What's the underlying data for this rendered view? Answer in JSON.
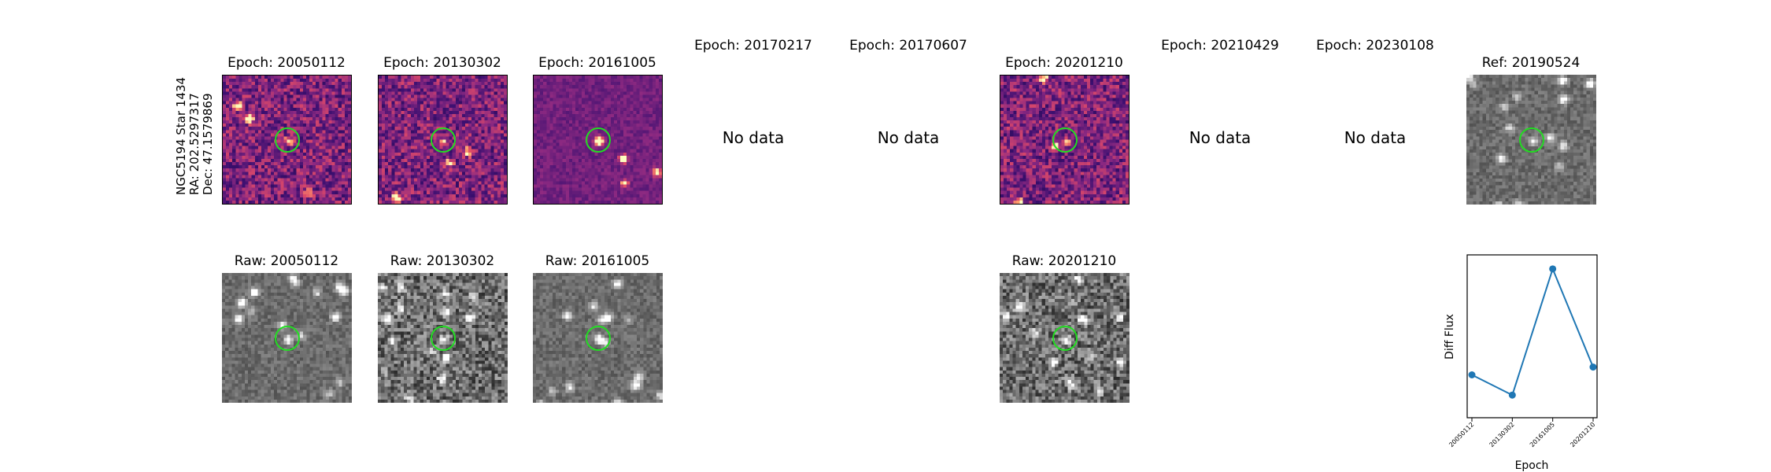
{
  "row_label": [
    "NGC5194 Star 1434",
    "RA: 202.5297317",
    "Dec: 47.1579869"
  ],
  "epochs": [
    {
      "diff_title": "Epoch: 20050112",
      "raw_title": "Raw: 20050112",
      "has_data": true
    },
    {
      "diff_title": "Epoch: 20130302",
      "raw_title": "Raw: 20130302",
      "has_data": true
    },
    {
      "diff_title": "Epoch: 20161005",
      "raw_title": "Raw: 20161005",
      "has_data": true
    },
    {
      "diff_title": "Epoch: 20170217",
      "has_data": false,
      "no_data_text": "No data"
    },
    {
      "diff_title": "Epoch: 20170607",
      "has_data": false,
      "no_data_text": "No data"
    },
    {
      "diff_title": "Epoch: 20201210",
      "raw_title": "Raw: 20201210",
      "has_data": true
    },
    {
      "diff_title": "Epoch: 20210429",
      "has_data": false,
      "no_data_text": "No data"
    },
    {
      "diff_title": "Epoch: 20230108",
      "has_data": false,
      "no_data_text": "No data"
    }
  ],
  "reference": {
    "title": "Ref: 20190524"
  },
  "colors": {
    "marker_ring": "#22dd22",
    "line": "#1f77b4"
  },
  "chart_data": {
    "type": "line",
    "title": "",
    "xlabel": "Epoch",
    "ylabel": "Diff Flux",
    "categories": [
      "20050112",
      "20130302",
      "20161005",
      "20201210"
    ],
    "values": [
      0.25,
      0.12,
      0.93,
      0.3
    ],
    "ylim": [
      0,
      1
    ],
    "y_ticks_shown": false,
    "grid": false,
    "marker": "circle"
  }
}
